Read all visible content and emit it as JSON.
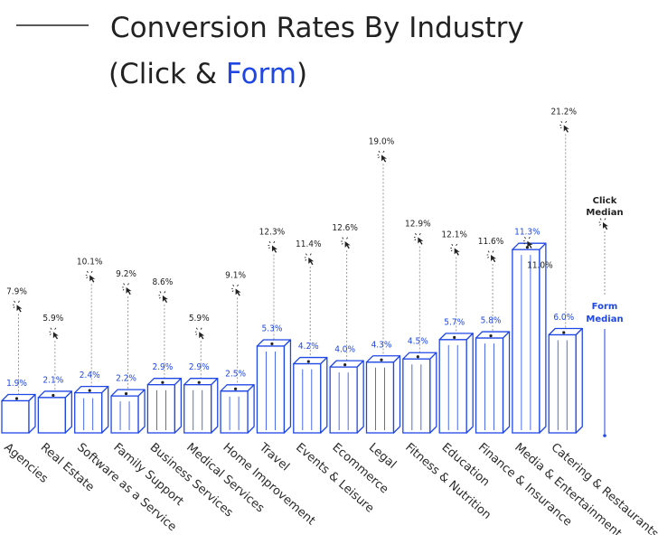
{
  "title": {
    "line1": "Conversion Rates By Industry",
    "line2_open": "(Click & ",
    "line2_form": "Form",
    "line2_close": ")"
  },
  "colors": {
    "accent": "#1f47e6",
    "text": "#222222",
    "guide": "#9a9a9a"
  },
  "chart_data": {
    "type": "bar",
    "categories": [
      "Agencies",
      "Real Estate",
      "Software as a Service",
      "Family Support",
      "Business Services",
      "Medical Services",
      "Home Improvement",
      "Travel",
      "Events & Leisure",
      "Ecommerce",
      "Legal",
      "Fitness & Nutrition",
      "Education",
      "Finance & Insurance",
      "Media & Entertainment",
      "Catering & Restaurants"
    ],
    "series": [
      {
        "name": "Click",
        "values": [
          7.9,
          5.9,
          10.1,
          9.2,
          8.6,
          5.9,
          9.1,
          12.3,
          11.4,
          12.6,
          19.0,
          12.9,
          12.1,
          11.6,
          11.0,
          21.2
        ]
      },
      {
        "name": "Form",
        "values": [
          1.9,
          2.1,
          2.4,
          2.2,
          2.9,
          2.9,
          2.5,
          5.3,
          4.2,
          4.0,
          4.3,
          4.5,
          5.7,
          5.8,
          11.3,
          6.0
        ]
      }
    ],
    "click_labels": [
      "7.9%",
      "5.9%",
      "10.1%",
      "9.2%",
      "8.6%",
      "5.9%",
      "9.1%",
      "12.3%",
      "11.4%",
      "12.6%",
      "19.0%",
      "12.9%",
      "12.1%",
      "11.6%",
      "11.0%",
      "21.2%"
    ],
    "form_labels": [
      "1.9%",
      "2.1%",
      "2.4%",
      "2.2%",
      "2.9%",
      "2.9%",
      "2.5%",
      "5.3%",
      "4.2%",
      "4.0%",
      "4.3%",
      "4.5%",
      "5.7%",
      "5.8%",
      "11.3%",
      "6.0%"
    ],
    "legend": {
      "click_line1": "Click",
      "click_line2": "Median",
      "form_line1": "Form",
      "form_line2": "Median"
    },
    "icons": {
      "click_marker": "cursor-click-icon"
    },
    "grid": false
  }
}
